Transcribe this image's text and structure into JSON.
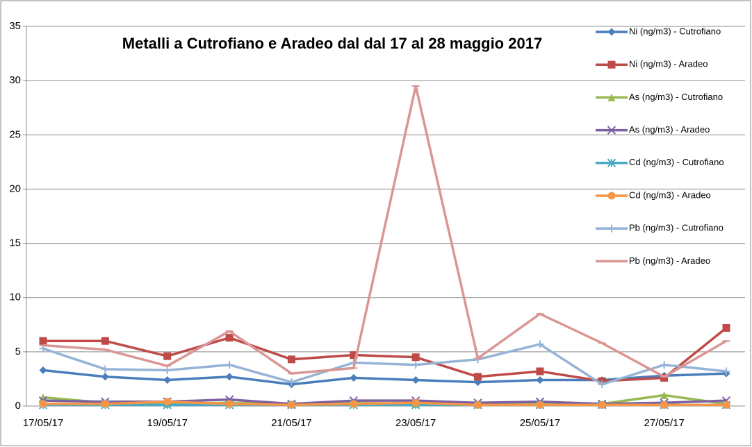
{
  "chart_data": {
    "type": "line",
    "title": "Metalli a Cutrofiano e Aradeo dal dal 17 al 28 maggio 2017",
    "categories": [
      "17/05/17",
      null,
      "19/05/17",
      null,
      "21/05/17",
      null,
      "23/05/17",
      null,
      "25/05/17",
      null,
      "27/05/17",
      null
    ],
    "ylim": [
      0,
      35
    ],
    "yticks": [
      0,
      5,
      10,
      15,
      20,
      25,
      30,
      35
    ],
    "grid": true,
    "series": [
      {
        "name": "Ni  (ng/m3) - Cutrofiano",
        "color": "#4a7ebb",
        "marker": "diamond",
        "values": [
          3.3,
          2.7,
          2.4,
          2.7,
          2.0,
          2.6,
          2.4,
          2.2,
          2.4,
          2.4,
          2.8,
          3.0
        ]
      },
      {
        "name": "Ni  (ng/m3) - Aradeo",
        "color": "#be4b48",
        "marker": "square",
        "values": [
          6.0,
          6.0,
          4.6,
          6.3,
          4.3,
          4.7,
          4.5,
          2.7,
          3.2,
          2.3,
          2.6,
          7.2
        ]
      },
      {
        "name": "As  (ng/m3) - Cutrofiano",
        "color": "#98b954",
        "marker": "triangle",
        "values": [
          0.8,
          0.3,
          0.2,
          0.3,
          0.2,
          0.3,
          0.2,
          0.2,
          0.2,
          0.2,
          1.0,
          0.2
        ]
      },
      {
        "name": "As  (ng/m3) - Aradeo",
        "color": "#7d60a0",
        "marker": "x",
        "values": [
          0.5,
          0.4,
          0.4,
          0.6,
          0.2,
          0.5,
          0.5,
          0.3,
          0.4,
          0.2,
          0.3,
          0.5
        ]
      },
      {
        "name": "Cd  (ng/m3) - Cutrofiano",
        "color": "#46aac5",
        "marker": "star",
        "values": [
          0.1,
          0.1,
          0.1,
          0.1,
          0.1,
          0.1,
          0.1,
          0.1,
          0.1,
          0.1,
          0.1,
          0.1
        ]
      },
      {
        "name": "Cd  (ng/m3) - Aradeo",
        "color": "#f79646",
        "marker": "circle",
        "values": [
          0.2,
          0.2,
          0.4,
          0.2,
          0.1,
          0.2,
          0.3,
          0.1,
          0.1,
          0.1,
          0.1,
          0.1
        ]
      },
      {
        "name": "Pb (ng/m3)  - Cutrofiano",
        "color": "#95b3d7",
        "marker": "plus",
        "values": [
          5.3,
          3.4,
          3.3,
          3.8,
          2.2,
          4.0,
          3.8,
          4.3,
          5.7,
          2.0,
          3.8,
          3.2
        ]
      },
      {
        "name": "Pb  (ng/m3) - Aradeo",
        "color": "#d99694",
        "marker": "dash",
        "values": [
          5.6,
          5.2,
          3.7,
          6.9,
          3.0,
          3.5,
          29.5,
          4.4,
          8.5,
          5.8,
          2.7,
          6.0
        ]
      }
    ]
  }
}
